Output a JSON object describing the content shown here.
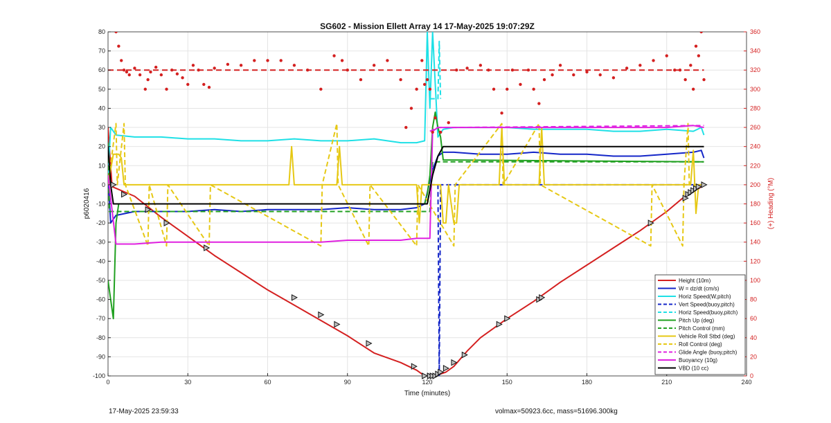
{
  "chart_data": {
    "type": "line",
    "title": "SG602 - Mission Ellett Array 14 17-May-2025 19:07:29Z",
    "xlabel": "Time (minutes)",
    "ylabel": "p6020416",
    "y2label": "(+) Heading (°M)",
    "xlim": [
      0,
      240
    ],
    "ylim": [
      -100,
      80
    ],
    "y2lim": [
      0,
      360
    ],
    "xticks": [
      0,
      30,
      60,
      90,
      120,
      150,
      180,
      210,
      240
    ],
    "yticks": [
      -100,
      -90,
      -80,
      -70,
      -60,
      -50,
      -40,
      -30,
      -20,
      -10,
      0,
      10,
      20,
      30,
      40,
      50,
      60,
      70,
      80
    ],
    "y2ticks": [
      0,
      20,
      40,
      60,
      80,
      100,
      120,
      140,
      160,
      180,
      200,
      220,
      240,
      260,
      280,
      300,
      320,
      340,
      360
    ],
    "grid": true,
    "legend_position": "bottom-right",
    "series": [
      {
        "name": "Height (10m)",
        "color": "#d42020",
        "style": "solid",
        "x": [
          0,
          1.5,
          10,
          20,
          30,
          40,
          50,
          60,
          70,
          80,
          90,
          100,
          110,
          116,
          119,
          121,
          123,
          125,
          127,
          130,
          135,
          140,
          150,
          160,
          170,
          180,
          190,
          200,
          210,
          216,
          218,
          220,
          222,
          224
        ],
        "y": [
          30,
          -1,
          -6,
          -17,
          -27,
          -37,
          -46,
          -55,
          -63,
          -71,
          -79,
          -88,
          -93,
          -97,
          -100,
          -100,
          -100,
          -99,
          -98,
          -95,
          -87,
          -80,
          -70,
          -61,
          -51,
          -42,
          -33,
          -24,
          -14,
          -7,
          -5,
          -3,
          -2,
          0
        ]
      },
      {
        "name": "W = dz/dt (cm/s)",
        "color": "#1426c8",
        "style": "solid",
        "x": [
          0,
          1,
          3,
          10,
          20,
          30,
          40,
          50,
          60,
          70,
          80,
          90,
          100,
          110,
          116,
          119,
          122,
          124,
          126,
          130,
          140,
          150,
          160,
          170,
          180,
          190,
          200,
          210,
          220,
          223,
          224
        ],
        "y": [
          5,
          -20,
          -16,
          -14,
          -14,
          -14,
          -13,
          -14,
          -13,
          -13,
          -13,
          -12,
          -13,
          -13,
          -12,
          -10,
          8,
          15,
          17,
          17,
          16,
          16,
          17,
          16,
          16,
          15,
          15,
          16,
          17,
          18,
          14
        ]
      },
      {
        "name": "Horiz Speed(W,pitch)",
        "color": "#1ee0e6",
        "style": "solid",
        "x": [
          0,
          1,
          3,
          10,
          20,
          30,
          40,
          50,
          60,
          70,
          80,
          90,
          100,
          110,
          116,
          119,
          120,
          121,
          122,
          124,
          126,
          130,
          140,
          150,
          160,
          170,
          180,
          190,
          200,
          210,
          220,
          223,
          224
        ],
        "y": [
          5,
          30,
          26,
          25,
          25,
          24,
          24,
          23,
          23,
          24,
          23,
          23,
          24,
          22,
          22,
          23,
          80,
          40,
          80,
          25,
          29,
          30,
          30,
          30,
          29,
          29,
          29,
          28,
          28,
          29,
          28,
          30,
          26
        ]
      },
      {
        "name": "Vert Speed(buoy,pitch)",
        "color": "#1426c8",
        "style": "dashed",
        "x": [
          121,
          124,
          124.5,
          125,
          130,
          224
        ],
        "y": [
          0,
          0,
          -100,
          0,
          0,
          0
        ]
      },
      {
        "name": "Horiz Speed(buoy,pitch)",
        "color": "#1ee0e6",
        "style": "dashed",
        "x": [
          121,
          124,
          124.5,
          125
        ],
        "y": [
          45,
          45,
          75,
          45
        ]
      },
      {
        "name": "Pitch Up (deg)",
        "color": "#20a020",
        "style": "solid",
        "x": [
          0,
          1,
          2,
          3,
          4,
          116,
          119,
          120,
          121,
          122,
          123,
          124,
          125,
          126,
          224
        ],
        "y": [
          -50,
          -60,
          -70,
          -20,
          -10,
          -10,
          -10,
          -5,
          5,
          30,
          38,
          30,
          25,
          13,
          12
        ]
      },
      {
        "name": "Pitch Control (mm)",
        "color": "#20a020",
        "style": "dashed",
        "x": [
          0,
          0.5,
          2,
          121,
          122,
          224
        ],
        "y": [
          22,
          -14,
          -14,
          -14,
          12,
          12
        ]
      },
      {
        "name": "Vehicle Roll Stbd (deg)",
        "color": "#e6c814",
        "style": "solid",
        "x": [
          0,
          2,
          4,
          5,
          6,
          10,
          20,
          30,
          40,
          50,
          60,
          68,
          69,
          70,
          80,
          86,
          87,
          88,
          90,
          100,
          110,
          116,
          117,
          118,
          119,
          125,
          126,
          127,
          128,
          130,
          131,
          132,
          135,
          147,
          148,
          149,
          162,
          163,
          164,
          180,
          200,
          210,
          219,
          220,
          221,
          222,
          224
        ],
        "y": [
          0,
          16,
          16,
          14,
          0,
          0,
          0,
          0,
          0,
          0,
          0,
          0,
          20,
          0,
          0,
          0,
          20,
          0,
          0,
          0,
          0,
          0,
          -20,
          0,
          0,
          0,
          -20,
          -20,
          0,
          -20,
          -20,
          0,
          0,
          0,
          30,
          0,
          0,
          30,
          0,
          0,
          0,
          0,
          0,
          18,
          -15,
          0,
          0
        ]
      },
      {
        "name": "Roll Control (deg)",
        "color": "#e6c814",
        "style": "dashed",
        "x": [
          0,
          3,
          3.5,
          6,
          6.5,
          15,
          15.5,
          22,
          22.5,
          38,
          38.5,
          80,
          80.5,
          86,
          86.5,
          98,
          98.5,
          116,
          116.5,
          130,
          130.5,
          148,
          148.5,
          162,
          162.5,
          204,
          204.5,
          216,
          216.5,
          218,
          218.5,
          224
        ],
        "y": [
          0,
          32,
          0,
          32,
          0,
          -32,
          0,
          -32,
          0,
          -32,
          0,
          -32,
          0,
          32,
          0,
          -32,
          0,
          -32,
          0,
          -32,
          0,
          32,
          0,
          32,
          0,
          -32,
          0,
          -32,
          0,
          32,
          0,
          0
        ]
      },
      {
        "name": "Glide Angle (buoy,pitch)",
        "color": "#e020e0",
        "style": "dashed",
        "x": [
          121,
          124,
          125,
          130,
          224
        ],
        "y": [
          28,
          30,
          30,
          30,
          31
        ]
      },
      {
        "name": "Buoyancy (10g)",
        "color": "#e020e0",
        "style": "solid",
        "x": [
          0,
          3,
          10,
          20,
          30,
          40,
          50,
          60,
          70,
          80,
          90,
          100,
          110,
          116,
          119,
          121,
          122,
          124,
          130,
          140,
          150,
          160,
          170,
          180,
          190,
          200,
          210,
          220,
          224
        ],
        "y": [
          5,
          -31,
          -31,
          -30,
          -30,
          -30,
          -30,
          -30,
          -30,
          -30,
          -29,
          -29,
          -29,
          -28,
          -28,
          -28,
          28,
          30,
          30,
          30,
          30,
          30,
          30,
          30,
          30,
          30,
          30,
          31,
          30
        ]
      },
      {
        "name": "VBD (10 cc)",
        "color": "#000000",
        "style": "solid",
        "x": [
          0,
          1,
          2,
          3,
          120,
          122,
          124,
          126,
          130,
          224
        ],
        "y": [
          20,
          0,
          -10,
          -10,
          -10,
          5,
          15,
          20,
          20,
          20
        ]
      }
    ],
    "heading_series": {
      "name": "Heading",
      "color": "#d42020",
      "axis": "right",
      "mean": 320,
      "x": [
        3,
        4,
        5,
        6,
        7,
        8,
        10,
        12,
        14,
        15,
        16,
        18,
        20,
        22,
        24,
        26,
        28,
        30,
        32,
        34,
        36,
        38,
        40,
        45,
        50,
        55,
        60,
        65,
        70,
        75,
        80,
        85,
        88,
        90,
        95,
        100,
        105,
        110,
        112,
        114,
        116,
        118,
        119,
        120,
        121,
        122,
        123,
        125,
        128,
        131,
        135,
        140,
        143,
        145,
        148,
        150,
        152,
        155,
        158,
        160,
        162,
        164,
        167,
        170,
        175,
        180,
        185,
        190,
        195,
        200,
        205,
        210,
        213,
        215,
        217,
        219,
        220,
        221,
        222,
        223,
        224
      ],
      "y": [
        360,
        345,
        330,
        320,
        318,
        315,
        322,
        315,
        300,
        310,
        318,
        323,
        315,
        300,
        320,
        316,
        312,
        305,
        325,
        320,
        305,
        302,
        322,
        326,
        325,
        330,
        330,
        330,
        325,
        320,
        300,
        335,
        330,
        320,
        310,
        325,
        330,
        310,
        260,
        280,
        300,
        330,
        305,
        310,
        300,
        255,
        270,
        255,
        265,
        320,
        322,
        325,
        320,
        300,
        275,
        300,
        320,
        305,
        320,
        300,
        285,
        310,
        315,
        325,
        315,
        318,
        315,
        312,
        322,
        325,
        330,
        335,
        320,
        320,
        310,
        325,
        300,
        345,
        335,
        360,
        310
      ]
    },
    "markers": {
      "x": [
        2,
        6,
        15,
        22,
        37,
        70,
        80,
        86,
        98,
        115,
        119,
        121,
        122,
        123,
        124,
        125,
        127,
        130,
        134,
        147,
        150,
        162,
        163,
        204,
        217,
        218,
        219,
        220,
        221,
        222,
        224
      ],
      "y": [
        0,
        -5,
        -13,
        -20,
        -33,
        -59,
        -68,
        -73,
        -83,
        -95,
        -100,
        -100,
        -100,
        -100,
        -99,
        -98,
        -96,
        -93,
        -89,
        -73,
        -70,
        -60,
        -59,
        -20,
        -7,
        -5,
        -4,
        -3,
        -2,
        -1,
        0
      ]
    }
  },
  "footer": {
    "timestamp": "17-May-2025 23:59:33",
    "info": "volmax=50923.6cc, mass=51696.300kg"
  }
}
